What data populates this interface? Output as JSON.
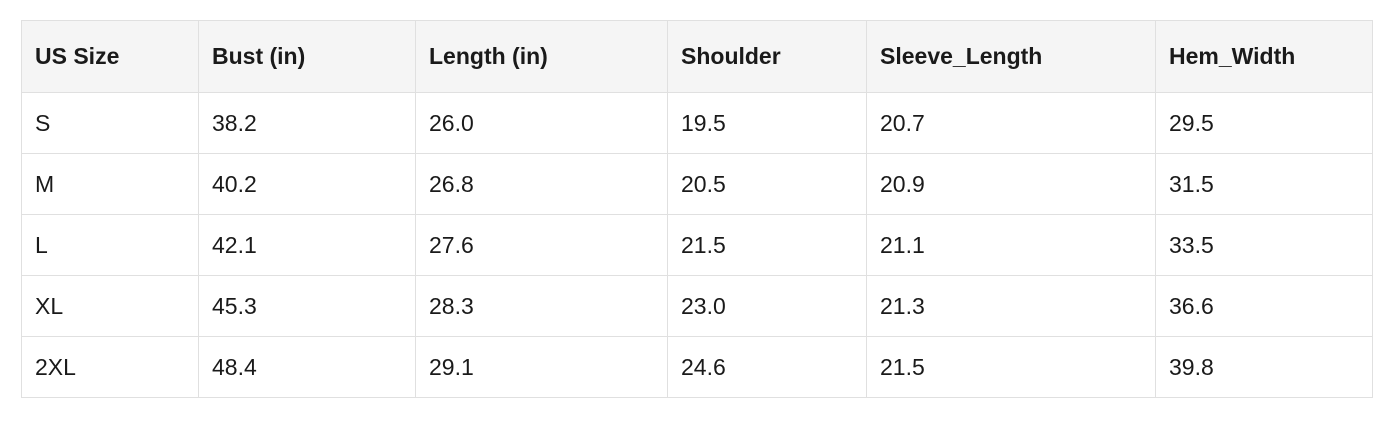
{
  "chart_data": {
    "type": "table",
    "title": "",
    "columns": [
      "US Size",
      "Bust (in)",
      "Length (in)",
      "Shoulder",
      "Sleeve_Length",
      "Hem_Width"
    ],
    "rows": [
      [
        "S",
        "38.2",
        "26.0",
        "19.5",
        "20.7",
        "29.5"
      ],
      [
        "M",
        "40.2",
        "26.8",
        "20.5",
        "20.9",
        "31.5"
      ],
      [
        "L",
        "42.1",
        "27.6",
        "21.5",
        "21.1",
        "33.5"
      ],
      [
        "XL",
        "45.3",
        "28.3",
        "23.0",
        "21.3",
        "36.6"
      ],
      [
        "2XL",
        "48.4",
        "29.1",
        "24.6",
        "21.5",
        "39.8"
      ]
    ],
    "layout": {
      "header_bg": "#f5f5f5",
      "row_bg": "#ffffff",
      "border_color": "#e0e0e0",
      "text_color": "#1a1a1a",
      "grid": "on"
    }
  }
}
